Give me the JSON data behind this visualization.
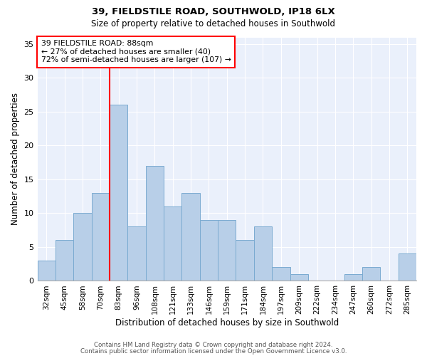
{
  "title": "39, FIELDSTILE ROAD, SOUTHWOLD, IP18 6LX",
  "subtitle": "Size of property relative to detached houses in Southwold",
  "xlabel": "Distribution of detached houses by size in Southwold",
  "ylabel": "Number of detached properties",
  "categories": [
    "32sqm",
    "45sqm",
    "58sqm",
    "70sqm",
    "83sqm",
    "96sqm",
    "108sqm",
    "121sqm",
    "133sqm",
    "146sqm",
    "159sqm",
    "171sqm",
    "184sqm",
    "197sqm",
    "209sqm",
    "222sqm",
    "234sqm",
    "247sqm",
    "260sqm",
    "272sqm",
    "285sqm"
  ],
  "values": [
    3,
    6,
    10,
    13,
    26,
    8,
    17,
    11,
    13,
    9,
    9,
    6,
    8,
    2,
    1,
    0,
    0,
    1,
    2,
    0,
    4
  ],
  "bar_color": "#b8cfe8",
  "bar_edge_color": "#7aaad0",
  "marker_line_index": 4,
  "marker_label": "39 FIELDSTILE ROAD: 88sqm",
  "note_line1": "← 27% of detached houses are smaller (40)",
  "note_line2": "72% of semi-detached houses are larger (107) →",
  "ylim": [
    0,
    36
  ],
  "yticks": [
    0,
    5,
    10,
    15,
    20,
    25,
    30,
    35
  ],
  "plot_bg_color": "#eaf0fb",
  "footer_line1": "Contains HM Land Registry data © Crown copyright and database right 2024.",
  "footer_line2": "Contains public sector information licensed under the Open Government Licence v3.0."
}
